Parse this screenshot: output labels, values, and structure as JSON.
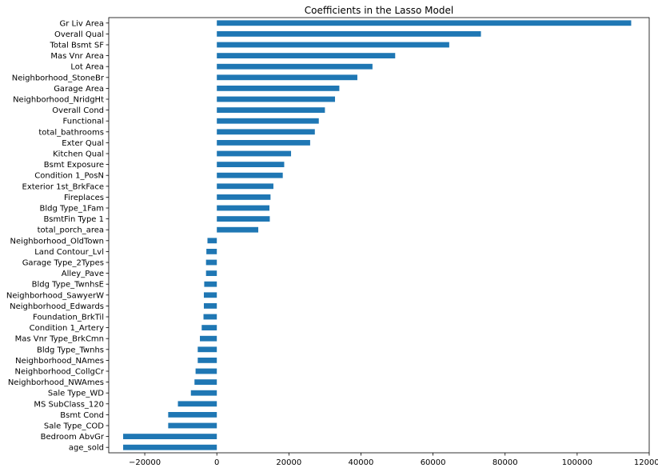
{
  "chart_data": {
    "type": "bar",
    "orientation": "horizontal",
    "title": "Coefficients in the Lasso Model",
    "xlabel": "",
    "ylabel": "",
    "xlim": [
      -30000,
      120000
    ],
    "xticks": [
      -20000,
      0,
      20000,
      40000,
      60000,
      80000,
      100000,
      120000
    ],
    "grid": false,
    "legend": "none",
    "bar_color": "#1f77b4",
    "categories": [
      "Gr Liv Area",
      "Overall Qual",
      "Total Bsmt SF",
      "Mas Vnr Area",
      "Lot Area",
      "Neighborhood_StoneBr",
      "Garage Area",
      "Neighborhood_NridgHt",
      "Overall Cond",
      "Functional",
      "total_bathrooms",
      "Exter Qual",
      "Kitchen Qual",
      "Bsmt Exposure",
      "Condition 1_PosN",
      "Exterior 1st_BrkFace",
      "Fireplaces",
      "Bldg Type_1Fam",
      "BsmtFin Type 1",
      "total_porch_area",
      "Neighborhood_OldTown",
      "Land Contour_Lvl",
      "Garage Type_2Types",
      "Alley_Pave",
      "Bldg Type_TwnhsE",
      "Neighborhood_SawyerW",
      "Neighborhood_Edwards",
      "Foundation_BrkTil",
      "Condition 1_Artery",
      "Mas Vnr Type_BrkCmn",
      "Bldg Type_Twnhs",
      "Neighborhood_NAmes",
      "Neighborhood_CollgCr",
      "Neighborhood_NWAmes",
      "Sale Type_WD ",
      "MS SubClass_120",
      "Bsmt Cond",
      "Sale Type_COD",
      "Bedroom AbvGr",
      "age_sold"
    ],
    "values": [
      115000,
      73300,
      64500,
      49500,
      43200,
      39000,
      34000,
      32800,
      30000,
      28300,
      27200,
      25900,
      20600,
      18700,
      18300,
      15700,
      14900,
      14600,
      14700,
      11500,
      -2600,
      -2900,
      -3000,
      -3000,
      -3500,
      -3600,
      -3600,
      -3700,
      -4200,
      -4700,
      -5300,
      -5300,
      -5900,
      -6200,
      -7200,
      -10800,
      -13500,
      -13500,
      -26000,
      -26000
    ]
  }
}
